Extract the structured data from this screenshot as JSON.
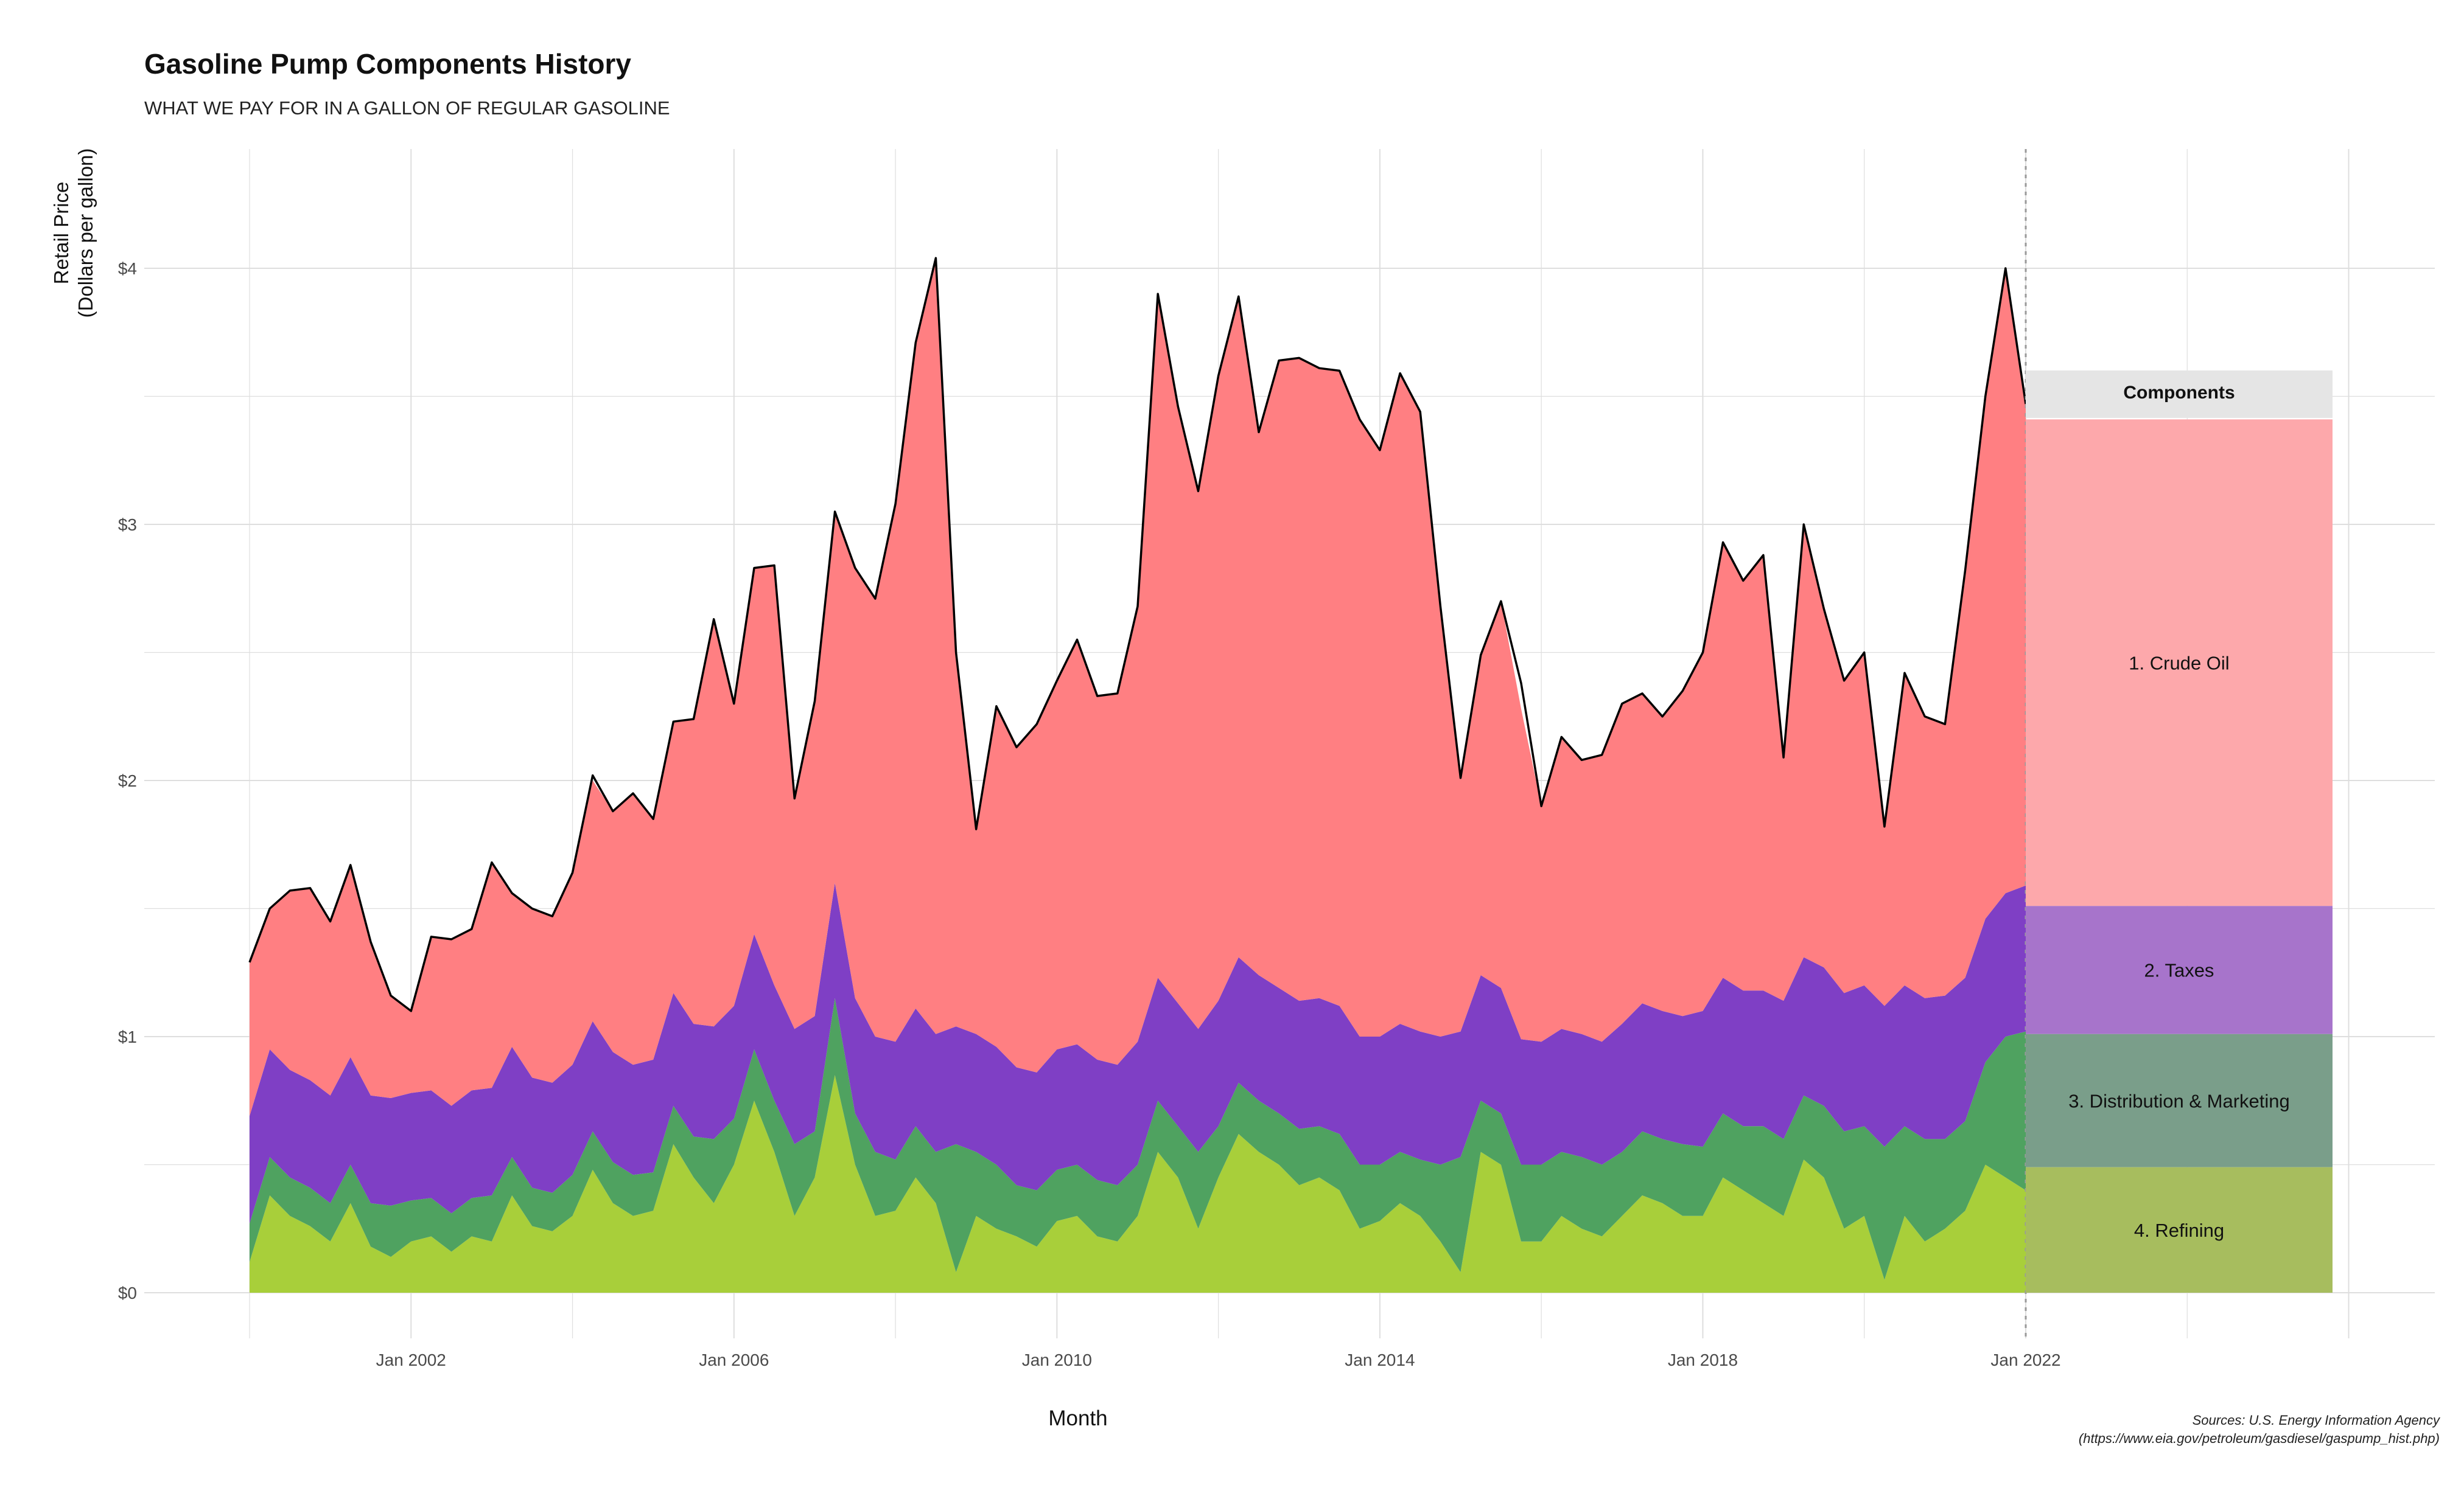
{
  "title": "Gasoline Pump Components History",
  "subtitle": "WHAT WE PAY FOR IN A GALLON OF REGULAR GASOLINE",
  "source_line1": "Sources: U.S. Energy Information Agency",
  "source_line2": "(https://www.eia.gov/petroleum/gasdiesel/gaspump_hist.php)",
  "colors": {
    "crude_oil": "#ff7f82",
    "taxes": "#7f3fc5",
    "distribution_marketing": "#4fa260",
    "refining": "#a8cf3a",
    "legend_crude_oil": "#fda8ab",
    "legend_taxes": "#a774cb",
    "legend_distribution_marketing": "#7a9e8a",
    "legend_refining": "#a7bd5e",
    "legend_header": "#e5e5e5",
    "grid": "#dedede",
    "total_line": "#000000"
  },
  "chart_data": {
    "type": "area",
    "stacked": true,
    "title": "Gasoline Pump Components History",
    "subtitle": "WHAT WE PAY FOR IN A GALLON OF REGULAR GASOLINE",
    "xlabel": "Month",
    "ylabel": "Retail Price\n(Dollars per gallon)",
    "ylabel_lines": [
      "Retail Price",
      "(Dollars per gallon)"
    ],
    "x_ticks": [
      "Jan 2002",
      "Jan 2006",
      "Jan 2010",
      "Jan 2014",
      "Jan 2018",
      "Jan 2022"
    ],
    "y_ticks": [
      "$0",
      "$1",
      "$2",
      "$3",
      "$4"
    ],
    "ylim": [
      0,
      4.3
    ],
    "x_start": "2000-01",
    "x_end": "2022-01",
    "legend": {
      "title": "Components",
      "placement": "right",
      "entries": [
        "1. Crude Oil",
        "2. Taxes",
        "3. Distribution & Marketing",
        "4. Refining"
      ]
    },
    "x": [
      "2000-01",
      "2000-04",
      "2000-07",
      "2000-10",
      "2001-01",
      "2001-04",
      "2001-07",
      "2001-10",
      "2002-01",
      "2002-04",
      "2002-07",
      "2002-10",
      "2003-01",
      "2003-04",
      "2003-07",
      "2003-10",
      "2004-01",
      "2004-04",
      "2004-07",
      "2004-10",
      "2005-01",
      "2005-04",
      "2005-07",
      "2005-10",
      "2006-01",
      "2006-04",
      "2006-07",
      "2006-10",
      "2007-01",
      "2007-04",
      "2007-07",
      "2007-10",
      "2008-01",
      "2008-04",
      "2008-07",
      "2008-10",
      "2009-01",
      "2009-04",
      "2009-07",
      "2009-10",
      "2010-01",
      "2010-04",
      "2010-07",
      "2010-10",
      "2011-01",
      "2011-04",
      "2011-07",
      "2011-10",
      "2012-01",
      "2012-04",
      "2012-07",
      "2012-10",
      "2013-01",
      "2013-04",
      "2013-07",
      "2013-10",
      "2014-01",
      "2014-04",
      "2014-07",
      "2014-10",
      "2015-01",
      "2015-04",
      "2015-07",
      "2015-10",
      "2016-01",
      "2016-04",
      "2016-07",
      "2016-10",
      "2017-01",
      "2017-04",
      "2017-07",
      "2017-10",
      "2018-01",
      "2018-04",
      "2018-07",
      "2018-10",
      "2019-01",
      "2019-04",
      "2019-07",
      "2019-10",
      "2020-01",
      "2020-04",
      "2020-07",
      "2020-10",
      "2021-01",
      "2021-04",
      "2021-07",
      "2021-10",
      "2022-01"
    ],
    "series": [
      {
        "name": "4. Refining",
        "values": [
          0.12,
          0.38,
          0.3,
          0.26,
          0.2,
          0.35,
          0.18,
          0.14,
          0.2,
          0.22,
          0.16,
          0.22,
          0.2,
          0.38,
          0.26,
          0.24,
          0.3,
          0.48,
          0.35,
          0.3,
          0.32,
          0.58,
          0.45,
          0.35,
          0.5,
          0.75,
          0.55,
          0.3,
          0.45,
          0.85,
          0.5,
          0.3,
          0.32,
          0.45,
          0.35,
          0.08,
          0.3,
          0.25,
          0.22,
          0.18,
          0.28,
          0.3,
          0.22,
          0.2,
          0.3,
          0.55,
          0.45,
          0.25,
          0.45,
          0.62,
          0.55,
          0.5,
          0.42,
          0.45,
          0.4,
          0.25,
          0.28,
          0.35,
          0.3,
          0.2,
          0.08,
          0.55,
          0.5,
          0.2,
          0.2,
          0.3,
          0.25,
          0.22,
          0.3,
          0.38,
          0.35,
          0.3,
          0.3,
          0.45,
          0.4,
          0.35,
          0.3,
          0.52,
          0.45,
          0.25,
          0.3,
          0.05,
          0.3,
          0.2,
          0.25,
          0.32,
          0.5,
          0.45,
          0.4
        ]
      },
      {
        "name": "3. Distribution & Marketing",
        "values": [
          0.15,
          0.15,
          0.15,
          0.15,
          0.15,
          0.15,
          0.17,
          0.2,
          0.16,
          0.15,
          0.15,
          0.15,
          0.18,
          0.15,
          0.15,
          0.15,
          0.16,
          0.15,
          0.16,
          0.16,
          0.15,
          0.15,
          0.16,
          0.25,
          0.18,
          0.2,
          0.2,
          0.28,
          0.18,
          0.3,
          0.2,
          0.25,
          0.2,
          0.2,
          0.2,
          0.5,
          0.25,
          0.25,
          0.2,
          0.22,
          0.2,
          0.2,
          0.22,
          0.22,
          0.2,
          0.2,
          0.2,
          0.3,
          0.2,
          0.2,
          0.2,
          0.2,
          0.22,
          0.2,
          0.22,
          0.25,
          0.22,
          0.2,
          0.22,
          0.3,
          0.45,
          0.2,
          0.2,
          0.3,
          0.3,
          0.25,
          0.28,
          0.28,
          0.25,
          0.25,
          0.25,
          0.28,
          0.27,
          0.25,
          0.25,
          0.3,
          0.3,
          0.25,
          0.28,
          0.38,
          0.35,
          0.52,
          0.35,
          0.4,
          0.35,
          0.35,
          0.4,
          0.55,
          0.62
        ]
      },
      {
        "name": "2. Taxes",
        "values": [
          0.42,
          0.42,
          0.42,
          0.42,
          0.42,
          0.42,
          0.42,
          0.42,
          0.42,
          0.42,
          0.42,
          0.42,
          0.42,
          0.43,
          0.43,
          0.43,
          0.43,
          0.43,
          0.43,
          0.43,
          0.44,
          0.44,
          0.44,
          0.44,
          0.44,
          0.45,
          0.45,
          0.45,
          0.45,
          0.45,
          0.45,
          0.45,
          0.46,
          0.46,
          0.46,
          0.46,
          0.46,
          0.46,
          0.46,
          0.46,
          0.47,
          0.47,
          0.47,
          0.47,
          0.48,
          0.48,
          0.48,
          0.48,
          0.49,
          0.49,
          0.49,
          0.49,
          0.5,
          0.5,
          0.5,
          0.5,
          0.5,
          0.5,
          0.5,
          0.5,
          0.49,
          0.49,
          0.49,
          0.49,
          0.48,
          0.48,
          0.48,
          0.48,
          0.5,
          0.5,
          0.5,
          0.5,
          0.53,
          0.53,
          0.53,
          0.53,
          0.54,
          0.54,
          0.54,
          0.54,
          0.55,
          0.55,
          0.55,
          0.55,
          0.56,
          0.56,
          0.56,
          0.56,
          0.57
        ]
      },
      {
        "name": "1. Crude Oil",
        "values": [
          0.6,
          0.55,
          0.7,
          0.75,
          0.68,
          0.75,
          0.6,
          0.4,
          0.32,
          0.6,
          0.65,
          0.63,
          0.88,
          0.6,
          0.66,
          0.65,
          0.75,
          0.94,
          0.94,
          1.06,
          0.94,
          1.06,
          1.19,
          1.59,
          1.18,
          1.43,
          1.64,
          0.9,
          1.23,
          1.45,
          1.68,
          1.71,
          2.1,
          2.6,
          3.03,
          1.48,
          0.8,
          1.33,
          1.25,
          1.36,
          1.44,
          1.58,
          1.42,
          1.45,
          1.7,
          2.67,
          2.33,
          2.1,
          2.44,
          2.58,
          2.12,
          2.45,
          2.51,
          2.46,
          2.48,
          2.41,
          2.29,
          2.54,
          2.42,
          1.68,
          0.99,
          1.25,
          1.51,
          1.29,
          0.92,
          1.14,
          1.07,
          1.12,
          1.25,
          1.21,
          1.15,
          1.27,
          1.4,
          1.7,
          1.6,
          1.7,
          0.95,
          1.69,
          1.4,
          1.22,
          1.3,
          0.7,
          1.22,
          1.1,
          1.06,
          1.59,
          2.04,
          2.44,
          1.88
        ]
      }
    ],
    "totals": [
      1.29,
      1.5,
      1.57,
      1.58,
      1.45,
      1.67,
      1.37,
      1.16,
      1.1,
      1.39,
      1.38,
      1.42,
      1.68,
      1.56,
      1.5,
      1.47,
      1.64,
      2.02,
      1.88,
      1.95,
      1.85,
      2.23,
      2.24,
      2.63,
      2.3,
      2.83,
      2.84,
      1.93,
      2.31,
      3.05,
      2.83,
      2.71,
      3.08,
      3.71,
      4.04,
      2.5,
      1.81,
      2.29,
      2.13,
      2.22,
      2.39,
      2.55,
      2.33,
      2.34,
      2.68,
      3.9,
      3.46,
      3.13,
      3.58,
      3.89,
      3.36,
      3.64,
      3.65,
      3.61,
      3.6,
      3.41,
      3.29,
      3.59,
      3.44,
      2.68,
      2.01,
      2.49,
      2.7,
      2.38,
      1.9,
      2.17,
      2.08,
      2.1,
      2.3,
      2.34,
      2.25,
      2.35,
      2.5,
      2.93,
      2.78,
      2.88,
      2.09,
      3.0,
      2.67,
      2.39,
      2.5,
      1.82,
      2.42,
      2.25,
      2.22,
      2.82,
      3.5,
      4.0,
      3.47
    ]
  }
}
